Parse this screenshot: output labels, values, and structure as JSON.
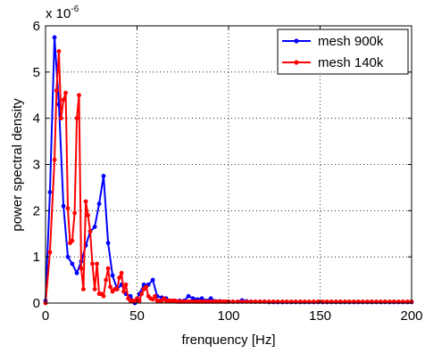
{
  "chart_data": {
    "type": "line",
    "xlabel": "frenquency [Hz]",
    "ylabel": "power spectral density",
    "exponent_label": "x 10",
    "exponent_power": "-6",
    "xlim": [
      0,
      200
    ],
    "ylim": [
      0,
      6
    ],
    "xticks": [
      "0",
      "50",
      "100",
      "150",
      "200"
    ],
    "yticks": [
      "0",
      "1",
      "2",
      "3",
      "4",
      "5",
      "6"
    ],
    "grid": true,
    "legend_position": "top-right",
    "series": [
      {
        "name": "mesh 900k",
        "color": "#0000ff",
        "x": [
          0,
          2.4,
          4.9,
          7.3,
          9.8,
          12.2,
          14.6,
          17.1,
          19.5,
          22,
          24.4,
          26.9,
          29.3,
          31.7,
          34.2,
          36.6,
          39.1,
          41.5,
          43.9,
          46.4,
          48.8,
          51.3,
          53.7,
          56.2,
          58.6,
          61,
          63.5,
          65.9,
          68.4,
          70.8,
          73.2,
          75.7,
          78.1,
          80.6,
          83,
          85.4,
          87.9,
          90.3,
          92.8,
          95.2,
          97.7,
          100.1,
          102.5,
          105,
          107.4,
          109.9,
          112.3,
          114.7,
          117.2,
          119.6,
          122.1,
          124.5,
          126.9,
          129.4,
          131.8,
          134.3,
          136.7,
          139.2,
          141.6,
          144,
          146.5,
          148.9,
          151.4,
          153.8,
          156.2,
          158.7,
          161.1,
          163.6,
          166,
          168.5,
          170.9,
          173.3,
          175.8,
          178.2,
          180.7,
          183.1,
          185.5,
          188,
          190.4,
          192.9,
          195.3,
          197.8,
          200
        ],
        "values": [
          0.05,
          2.4,
          5.75,
          4.3,
          2.1,
          1.0,
          0.85,
          0.65,
          0.9,
          1.25,
          1.55,
          1.65,
          2.15,
          2.75,
          1.3,
          0.6,
          0.3,
          0.4,
          0.2,
          0.15,
          0.0,
          0.2,
          0.4,
          0.4,
          0.5,
          0.15,
          0.12,
          0.1,
          0.05,
          0.05,
          0.05,
          0.05,
          0.15,
          0.1,
          0.08,
          0.1,
          0.05,
          0.1,
          0.04,
          0.04,
          0.03,
          0.03,
          0.03,
          0.03,
          0.06,
          0.04,
          0.03,
          0.03,
          0.03,
          0.03,
          0.02,
          0.02,
          0.02,
          0.02,
          0.02,
          0.02,
          0.02,
          0.02,
          0.02,
          0.02,
          0.02,
          0.02,
          0.02,
          0.02,
          0.02,
          0.02,
          0.02,
          0.02,
          0.02,
          0.02,
          0.02,
          0.02,
          0.02,
          0.02,
          0.02,
          0.02,
          0.02,
          0.02,
          0.02,
          0.02,
          0.02,
          0.02,
          0.02
        ]
      },
      {
        "name": "mesh 140k",
        "color": "#ff0000",
        "x": [
          0,
          2.4,
          4.9,
          6,
          7.3,
          8.5,
          9.8,
          11,
          12.2,
          13.4,
          14.6,
          15.9,
          17.1,
          18.3,
          19.5,
          20.7,
          22,
          23.2,
          24.4,
          25.6,
          26.9,
          28.1,
          29.3,
          30.5,
          31.7,
          33,
          34.2,
          35.4,
          36.6,
          37.8,
          39.1,
          40.3,
          41.5,
          42.7,
          43.9,
          45.2,
          46.4,
          47.6,
          48.8,
          50,
          51.3,
          52.5,
          53.7,
          55,
          56.2,
          57.4,
          58.6,
          59.8,
          61,
          62.3,
          63.5,
          64.7,
          65.9,
          67.1,
          68.4,
          69.6,
          70.8,
          72,
          73.2,
          74.5,
          75.7,
          76.9,
          78.1,
          79.3,
          80.6,
          81.8,
          83,
          84.2,
          85.4,
          86.7,
          87.9,
          89.1,
          90.3,
          91.5,
          92.8,
          94,
          95.2,
          96.4,
          97.7,
          98.9,
          100.1,
          102.5,
          105,
          107.4,
          109.9,
          112.3,
          114.7,
          117.2,
          119.6,
          122.1,
          124.5,
          126.9,
          129.4,
          131.8,
          134.3,
          136.7,
          139.2,
          141.6,
          144,
          146.5,
          148.9,
          151.4,
          153.8,
          156.2,
          158.7,
          161.1,
          163.6,
          166,
          168.5,
          170.9,
          173.3,
          175.8,
          178.2,
          180.7,
          183.1,
          185.5,
          188,
          190.4,
          192.9,
          195.3,
          197.8,
          200
        ],
        "values": [
          0.0,
          1.1,
          3.1,
          4.6,
          5.45,
          4.0,
          4.4,
          4.55,
          2.05,
          1.3,
          1.35,
          1.95,
          4.0,
          4.5,
          0.75,
          0.3,
          2.2,
          1.9,
          1.55,
          0.85,
          0.3,
          0.85,
          0.2,
          0.2,
          0.15,
          0.5,
          0.75,
          0.35,
          0.25,
          0.3,
          0.3,
          0.55,
          0.65,
          0.25,
          0.4,
          0.1,
          0.05,
          0.05,
          0.05,
          0.1,
          0.05,
          0.2,
          0.3,
          0.35,
          0.15,
          0.1,
          0.08,
          0.15,
          0.05,
          0.05,
          0.05,
          0.1,
          0.05,
          0.05,
          0.05,
          0.05,
          0.05,
          0.03,
          0.03,
          0.03,
          0.03,
          0.03,
          0.03,
          0.03,
          0.03,
          0.03,
          0.03,
          0.03,
          0.03,
          0.03,
          0.03,
          0.03,
          0.03,
          0.03,
          0.03,
          0.03,
          0.03,
          0.03,
          0.03,
          0.03,
          0.03,
          0.03,
          0.03,
          0.03,
          0.03,
          0.03,
          0.03,
          0.03,
          0.03,
          0.03,
          0.03,
          0.03,
          0.03,
          0.03,
          0.03,
          0.03,
          0.03,
          0.03,
          0.03,
          0.03,
          0.03,
          0.03,
          0.03,
          0.03,
          0.03,
          0.03,
          0.03,
          0.03,
          0.03,
          0.03,
          0.03,
          0.03,
          0.03,
          0.03,
          0.03,
          0.03,
          0.03,
          0.03,
          0.03,
          0.03,
          0.03,
          0.03
        ]
      }
    ]
  }
}
